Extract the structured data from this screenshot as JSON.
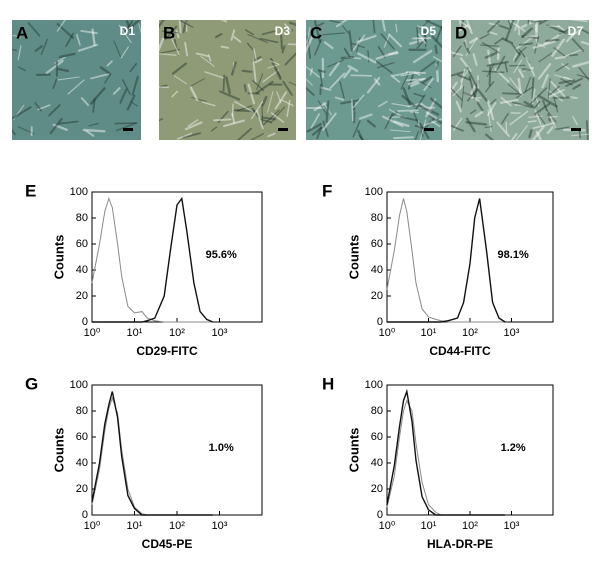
{
  "images": [
    {
      "panel": "A",
      "label": "D1"
    },
    {
      "panel": "B",
      "label": "D3"
    },
    {
      "panel": "C",
      "label": "D5"
    },
    {
      "panel": "D",
      "label": "D7"
    }
  ],
  "chart_data": [
    {
      "type": "line",
      "panel": "E",
      "x_label": "CD29-FITC",
      "y_label": "Counts",
      "annotation": "95.6%",
      "log_x": true,
      "xlim": [
        1,
        10000
      ],
      "ylim": [
        0,
        100
      ],
      "xticks": [
        {
          "value": 1,
          "label": "10⁰"
        },
        {
          "value": 10,
          "label": "10¹"
        },
        {
          "value": 100,
          "label": "10²"
        },
        {
          "value": 1000,
          "label": "10³"
        }
      ],
      "yticks": [
        0,
        20,
        40,
        60,
        80,
        100
      ],
      "x": [
        1,
        1.5,
        2,
        2.5,
        3,
        4,
        5,
        7,
        10,
        15,
        20,
        30,
        50,
        70,
        100,
        130,
        170,
        250,
        350,
        500,
        700
      ],
      "series": [
        {
          "color": "#8a8a8a",
          "values": [
            30,
            60,
            85,
            95,
            88,
            60,
            35,
            12,
            7,
            8,
            3,
            1,
            0,
            0,
            0,
            0,
            0,
            0,
            0,
            0,
            0
          ]
        },
        {
          "color": "#111111",
          "values": [
            0,
            0,
            0,
            0,
            0,
            0,
            0,
            0,
            0,
            0,
            1,
            3,
            20,
            55,
            90,
            95,
            70,
            30,
            8,
            2,
            0
          ]
        }
      ]
    },
    {
      "type": "line",
      "panel": "F",
      "x_label": "CD44-FITC",
      "y_label": "Counts",
      "annotation": "98.1%",
      "log_x": true,
      "xlim": [
        1,
        10000
      ],
      "ylim": [
        0,
        100
      ],
      "xticks": [
        {
          "value": 1,
          "label": "10⁰"
        },
        {
          "value": 10,
          "label": "10¹"
        },
        {
          "value": 100,
          "label": "10²"
        },
        {
          "value": 1000,
          "label": "10³"
        }
      ],
      "yticks": [
        0,
        20,
        40,
        60,
        80,
        100
      ],
      "x": [
        1,
        1.5,
        2,
        2.5,
        3,
        4,
        5,
        7,
        10,
        15,
        20,
        30,
        50,
        70,
        100,
        130,
        170,
        250,
        350,
        500,
        700
      ],
      "series": [
        {
          "color": "#8a8a8a",
          "values": [
            25,
            55,
            82,
            95,
            85,
            55,
            30,
            10,
            4,
            2,
            1,
            0,
            0,
            0,
            0,
            0,
            0,
            0,
            0,
            0,
            0
          ]
        },
        {
          "color": "#111111",
          "values": [
            0,
            0,
            0,
            0,
            0,
            0,
            0,
            0,
            0,
            0,
            0,
            1,
            3,
            15,
            45,
            80,
            95,
            55,
            15,
            3,
            0
          ]
        }
      ]
    },
    {
      "type": "line",
      "panel": "G",
      "x_label": "CD45-PE",
      "y_label": "Counts",
      "annotation": "1.0%",
      "log_x": true,
      "xlim": [
        1,
        10000
      ],
      "ylim": [
        0,
        100
      ],
      "xticks": [
        {
          "value": 1,
          "label": "10⁰"
        },
        {
          "value": 10,
          "label": "10¹"
        },
        {
          "value": 100,
          "label": "10²"
        },
        {
          "value": 1000,
          "label": "10³"
        }
      ],
      "yticks": [
        0,
        20,
        40,
        60,
        80,
        100
      ],
      "x": [
        1,
        1.5,
        2,
        2.5,
        3,
        4,
        5,
        7,
        10,
        15,
        20,
        30,
        50,
        70,
        100,
        130,
        170,
        250,
        350,
        500,
        700
      ],
      "series": [
        {
          "color": "#8a8a8a",
          "values": [
            8,
            35,
            65,
            82,
            90,
            78,
            50,
            20,
            6,
            1,
            0,
            0,
            0,
            0,
            0,
            0,
            0,
            0,
            0,
            0,
            0
          ]
        },
        {
          "color": "#111111",
          "values": [
            10,
            40,
            70,
            85,
            95,
            75,
            45,
            15,
            5,
            0,
            0,
            0,
            0,
            0,
            0,
            0,
            0,
            0,
            0,
            0,
            0
          ]
        }
      ]
    },
    {
      "type": "line",
      "panel": "H",
      "x_label": "HLA-DR-PE",
      "y_label": "Counts",
      "annotation": "1.2%",
      "log_x": true,
      "xlim": [
        1,
        10000
      ],
      "ylim": [
        0,
        100
      ],
      "xticks": [
        {
          "value": 1,
          "label": "10⁰"
        },
        {
          "value": 10,
          "label": "10¹"
        },
        {
          "value": 100,
          "label": "10²"
        },
        {
          "value": 1000,
          "label": "10³"
        }
      ],
      "yticks": [
        0,
        20,
        40,
        60,
        80,
        100
      ],
      "x": [
        1,
        1.5,
        2,
        2.5,
        3,
        4,
        5,
        7,
        10,
        15,
        20,
        30,
        50,
        70,
        100,
        130,
        170,
        250,
        350,
        500,
        700
      ],
      "series": [
        {
          "color": "#8a8a8a",
          "values": [
            6,
            30,
            60,
            80,
            88,
            80,
            55,
            25,
            8,
            2,
            0,
            0,
            0,
            0,
            0,
            0,
            0,
            0,
            0,
            0,
            0
          ]
        },
        {
          "color": "#111111",
          "values": [
            8,
            38,
            68,
            88,
            95,
            72,
            42,
            14,
            4,
            0,
            0,
            0,
            0,
            0,
            0,
            0,
            0,
            0,
            0,
            0,
            0
          ]
        }
      ]
    }
  ]
}
